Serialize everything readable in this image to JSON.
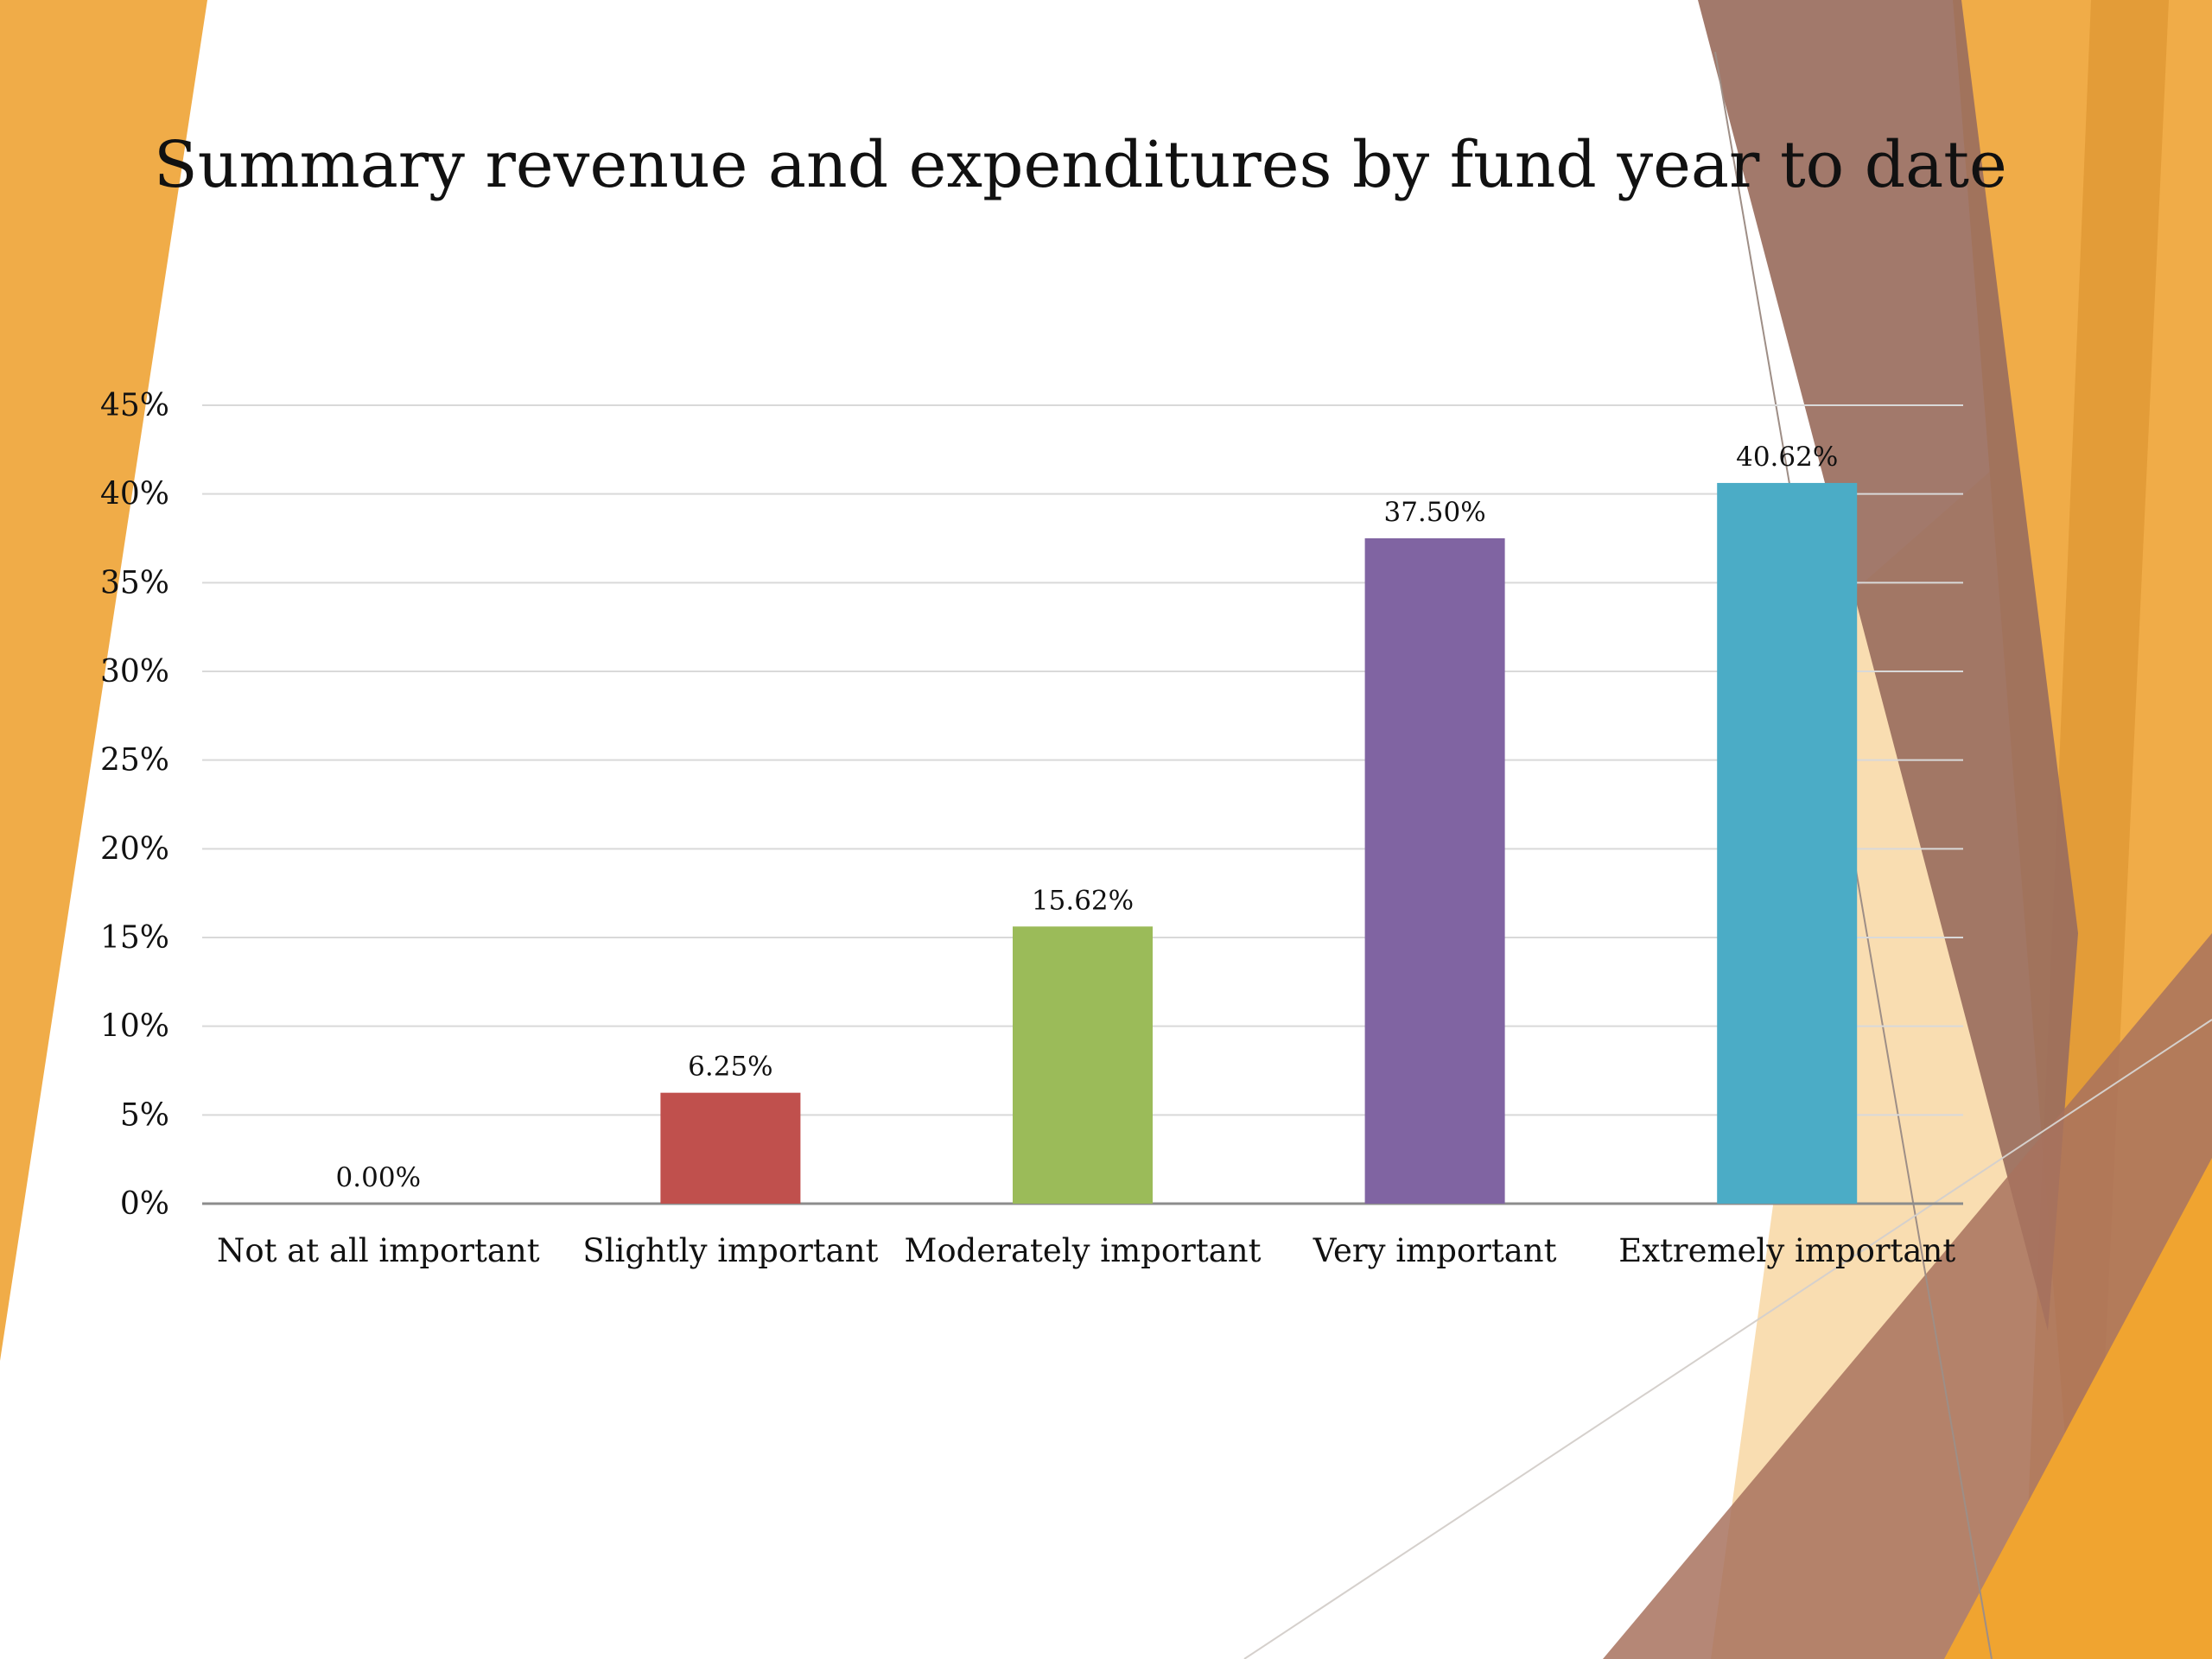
{
  "slide": {
    "title": "Summary revenue and expenditures by fund year to date",
    "theme_colors": {
      "orange": "#F0AC48",
      "dark_orange": "#D98F2B",
      "brown": "#9A6E5E",
      "light_peach": "#F8D9A8"
    }
  },
  "chart_data": {
    "type": "bar",
    "title": "Summary revenue and expenditures by fund year to date",
    "categories": [
      "Not at all important",
      "Slightly important",
      "Moderately important",
      "Very important",
      "Extremely important"
    ],
    "values": [
      0.0,
      6.25,
      15.62,
      37.5,
      40.62
    ],
    "value_labels": [
      "0.00%",
      "6.25%",
      "15.62%",
      "37.50%",
      "40.62%"
    ],
    "colors": [
      "#4F81BD",
      "#C0504D",
      "#9BBB59",
      "#8064A2",
      "#4BACC6"
    ],
    "ylim": [
      0,
      45
    ],
    "yticks": [
      0,
      5,
      10,
      15,
      20,
      25,
      30,
      35,
      40,
      45
    ],
    "ytick_labels": [
      "0%",
      "5%",
      "10%",
      "15%",
      "20%",
      "25%",
      "30%",
      "35%",
      "40%",
      "45%"
    ],
    "xlabel": "",
    "ylabel": "",
    "grid": true,
    "legend": "none"
  }
}
